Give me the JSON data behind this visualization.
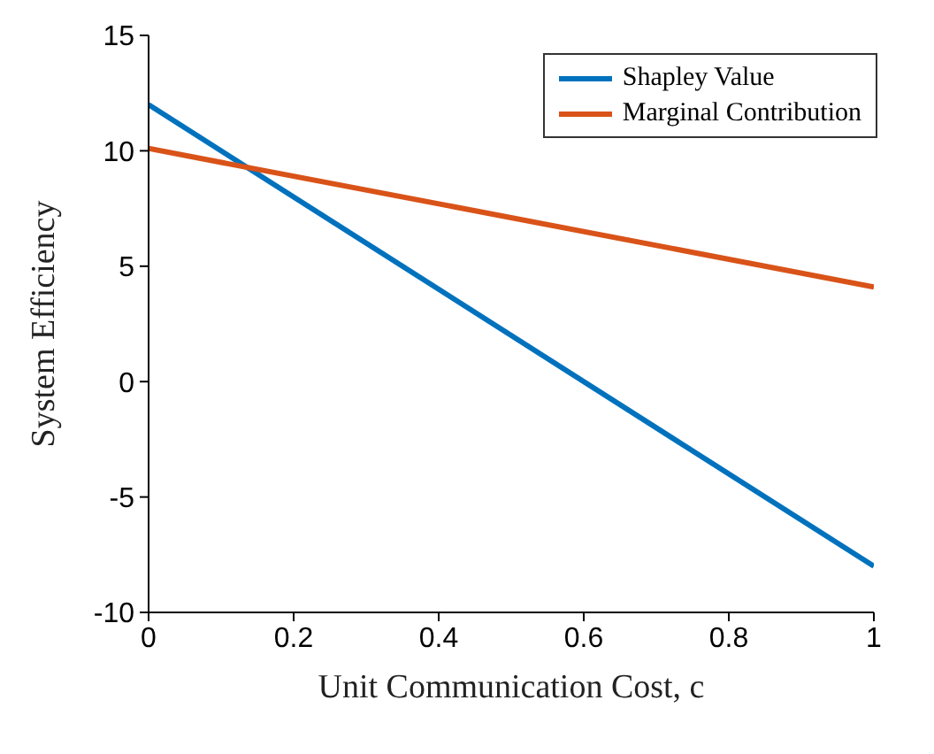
{
  "chart_data": {
    "type": "line",
    "xlabel": "Unit Communication Cost, c",
    "ylabel": "System Efficiency",
    "x": [
      0,
      1
    ],
    "series": [
      {
        "name": "Shapley Value",
        "color": "#0072bd",
        "values": [
          12,
          -8
        ]
      },
      {
        "name": "Marginal Contribution",
        "color": "#d95319",
        "values": [
          10.1,
          4.1
        ]
      }
    ],
    "xlim": [
      0,
      1
    ],
    "xticks": [
      0,
      0.2,
      0.4,
      0.6,
      0.8,
      1
    ],
    "ylim": [
      -10,
      15
    ],
    "yticks": [
      -10,
      -5,
      0,
      5,
      10,
      15
    ],
    "grid": false,
    "legend": "top right",
    "marker": "none",
    "line_style": "solid"
  }
}
